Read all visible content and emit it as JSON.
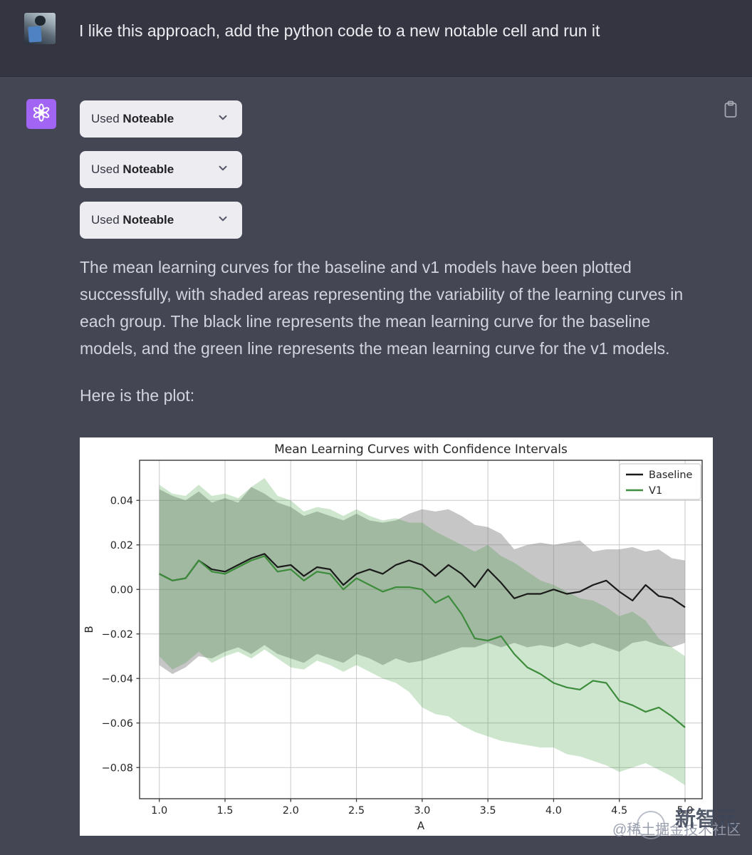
{
  "user_message": {
    "text": "I like this approach, add the python code to a new notable cell and run it"
  },
  "assistant": {
    "plugin_buttons": [
      {
        "prefix": "Used",
        "name": "Noteable"
      },
      {
        "prefix": "Used",
        "name": "Noteable"
      },
      {
        "prefix": "Used",
        "name": "Noteable"
      }
    ],
    "paragraphs": {
      "p1": "The mean learning curves for the baseline and v1 models have been plotted successfully, with shaded areas representing the variability of the learning curves in each group. The black line represents the mean learning curve for the baseline models, and the green line represents the mean learning curve for the v1 models.",
      "p2": "Here is the plot:"
    }
  },
  "icons": {
    "copy": "clipboard-icon",
    "button_chevron": "chevron-down-icon",
    "assistant_avatar": "openai-logo-icon"
  },
  "colors": {
    "user_row_bg": "#343541",
    "assistant_row_bg": "#444654",
    "button_bg": "#ececf1",
    "avatar_purple": "#a264f2",
    "baseline_line": "#1a1a1a",
    "v1_line": "#3c8c3c"
  },
  "watermark": {
    "back": "@稀土掘金技术社区",
    "front": "新智元"
  },
  "chart_data": {
    "type": "line",
    "title": "Mean Learning Curves with Confidence Intervals",
    "xlabel": "A",
    "ylabel": "B",
    "xlim": [
      0.85,
      5.13
    ],
    "ylim": [
      -0.094,
      0.058
    ],
    "grid": true,
    "legend_position": "upper right",
    "xticks": [
      1.0,
      1.5,
      2.0,
      2.5,
      3.0,
      3.5,
      4.0,
      4.5,
      5.0
    ],
    "xtick_labels": [
      "1.0",
      "1.5",
      "2.0",
      "2.5",
      "3.0",
      "3.5",
      "4.0",
      "4.5",
      "5.0"
    ],
    "yticks": [
      0.04,
      0.02,
      0.0,
      -0.02,
      -0.04,
      -0.06,
      -0.08
    ],
    "ytick_labels": [
      "0.04",
      "0.02",
      "0.00",
      "−0.02",
      "−0.04",
      "−0.06",
      "−0.08"
    ],
    "x": [
      1.0,
      1.1,
      1.2,
      1.3,
      1.4,
      1.5,
      1.6,
      1.7,
      1.8,
      1.9,
      2.0,
      2.1,
      2.2,
      2.3,
      2.4,
      2.5,
      2.6,
      2.7,
      2.8,
      2.9,
      3.0,
      3.1,
      3.2,
      3.3,
      3.4,
      3.5,
      3.6,
      3.7,
      3.8,
      3.9,
      4.0,
      4.1,
      4.2,
      4.3,
      4.4,
      4.5,
      4.6,
      4.7,
      4.8,
      4.9,
      5.0
    ],
    "series": [
      {
        "name": "Baseline",
        "color": "#1a1a1a",
        "band_fill": "rgba(128,128,128,0.45)",
        "mean": [
          0.007,
          0.004,
          0.005,
          0.013,
          0.009,
          0.008,
          0.011,
          0.014,
          0.016,
          0.01,
          0.011,
          0.006,
          0.01,
          0.009,
          0.002,
          0.007,
          0.009,
          0.007,
          0.011,
          0.013,
          0.011,
          0.006,
          0.011,
          0.007,
          0.001,
          0.009,
          0.003,
          -0.004,
          -0.002,
          -0.002,
          0.0,
          -0.002,
          -0.001,
          0.002,
          0.004,
          -0.001,
          -0.005,
          0.002,
          -0.003,
          -0.004,
          -0.008
        ],
        "band_upper": [
          0.045,
          0.042,
          0.04,
          0.044,
          0.039,
          0.041,
          0.039,
          0.046,
          0.043,
          0.039,
          0.037,
          0.033,
          0.035,
          0.033,
          0.031,
          0.034,
          0.031,
          0.03,
          0.031,
          0.034,
          0.036,
          0.035,
          0.036,
          0.033,
          0.029,
          0.028,
          0.025,
          0.018,
          0.02,
          0.021,
          0.02,
          0.021,
          0.022,
          0.017,
          0.018,
          0.018,
          0.019,
          0.017,
          0.018,
          0.014,
          0.013
        ],
        "band_lower": [
          -0.034,
          -0.038,
          -0.035,
          -0.03,
          -0.031,
          -0.028,
          -0.026,
          -0.029,
          -0.025,
          -0.029,
          -0.031,
          -0.033,
          -0.029,
          -0.031,
          -0.033,
          -0.029,
          -0.031,
          -0.034,
          -0.031,
          -0.033,
          -0.032,
          -0.03,
          -0.028,
          -0.026,
          -0.026,
          -0.024,
          -0.026,
          -0.024,
          -0.026,
          -0.025,
          -0.026,
          -0.024,
          -0.026,
          -0.024,
          -0.026,
          -0.028,
          -0.024,
          -0.023,
          -0.025,
          -0.026,
          -0.024
        ]
      },
      {
        "name": "V1",
        "color": "#3c8c3c",
        "band_fill": "rgba(34,139,34,0.22)",
        "mean": [
          0.007,
          0.004,
          0.005,
          0.013,
          0.008,
          0.007,
          0.01,
          0.013,
          0.015,
          0.008,
          0.009,
          0.004,
          0.008,
          0.007,
          0.0,
          0.005,
          0.002,
          -0.001,
          0.001,
          0.001,
          0.0,
          -0.006,
          -0.003,
          -0.011,
          -0.022,
          -0.023,
          -0.021,
          -0.029,
          -0.035,
          -0.038,
          -0.042,
          -0.044,
          -0.045,
          -0.041,
          -0.042,
          -0.05,
          -0.052,
          -0.055,
          -0.053,
          -0.057,
          -0.062
        ],
        "band_upper": [
          0.047,
          0.043,
          0.042,
          0.047,
          0.042,
          0.043,
          0.041,
          0.046,
          0.05,
          0.042,
          0.04,
          0.035,
          0.037,
          0.036,
          0.033,
          0.036,
          0.033,
          0.031,
          0.032,
          0.03,
          0.03,
          0.026,
          0.023,
          0.02,
          0.017,
          0.02,
          0.015,
          0.012,
          0.008,
          0.004,
          0.002,
          -0.001,
          -0.004,
          -0.005,
          -0.008,
          -0.012,
          -0.01,
          -0.014,
          -0.022,
          -0.026,
          -0.03
        ],
        "band_lower": [
          -0.03,
          -0.036,
          -0.033,
          -0.028,
          -0.033,
          -0.03,
          -0.028,
          -0.031,
          -0.027,
          -0.031,
          -0.035,
          -0.036,
          -0.032,
          -0.034,
          -0.037,
          -0.034,
          -0.037,
          -0.04,
          -0.042,
          -0.046,
          -0.053,
          -0.056,
          -0.057,
          -0.061,
          -0.064,
          -0.066,
          -0.068,
          -0.069,
          -0.07,
          -0.071,
          -0.071,
          -0.074,
          -0.075,
          -0.077,
          -0.079,
          -0.082,
          -0.08,
          -0.078,
          -0.081,
          -0.084,
          -0.088
        ]
      }
    ]
  }
}
